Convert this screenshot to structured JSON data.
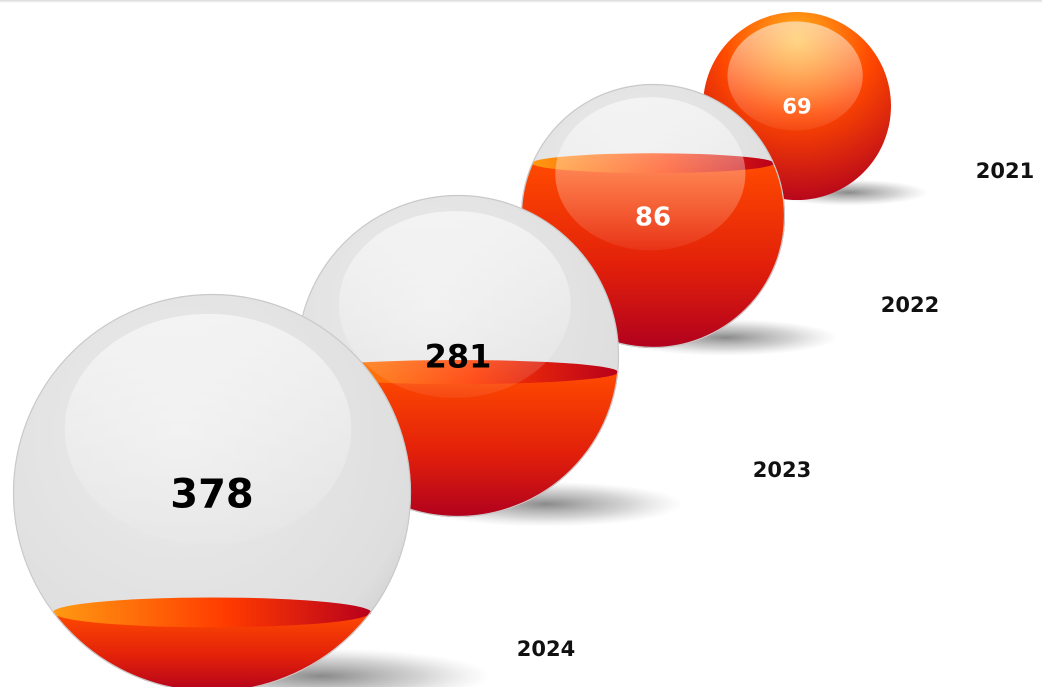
{
  "chart_data": {
    "type": "bubble",
    "title": "",
    "categories": [
      "2021",
      "2022",
      "2023",
      "2024"
    ],
    "values": [
      69,
      86,
      281,
      378
    ],
    "fill_level": [
      1.0,
      0.7,
      0.45,
      0.2
    ],
    "label_colors": [
      "#ffffff",
      "#ffffff",
      "#000000",
      "#000000"
    ],
    "colors": {
      "fill_light": "#ffa21c",
      "fill_mid": "#ff4a00",
      "fill_dark": "#b0001e",
      "glass": "#e4e4e4",
      "glass_edge": "#c4c4c4"
    }
  }
}
